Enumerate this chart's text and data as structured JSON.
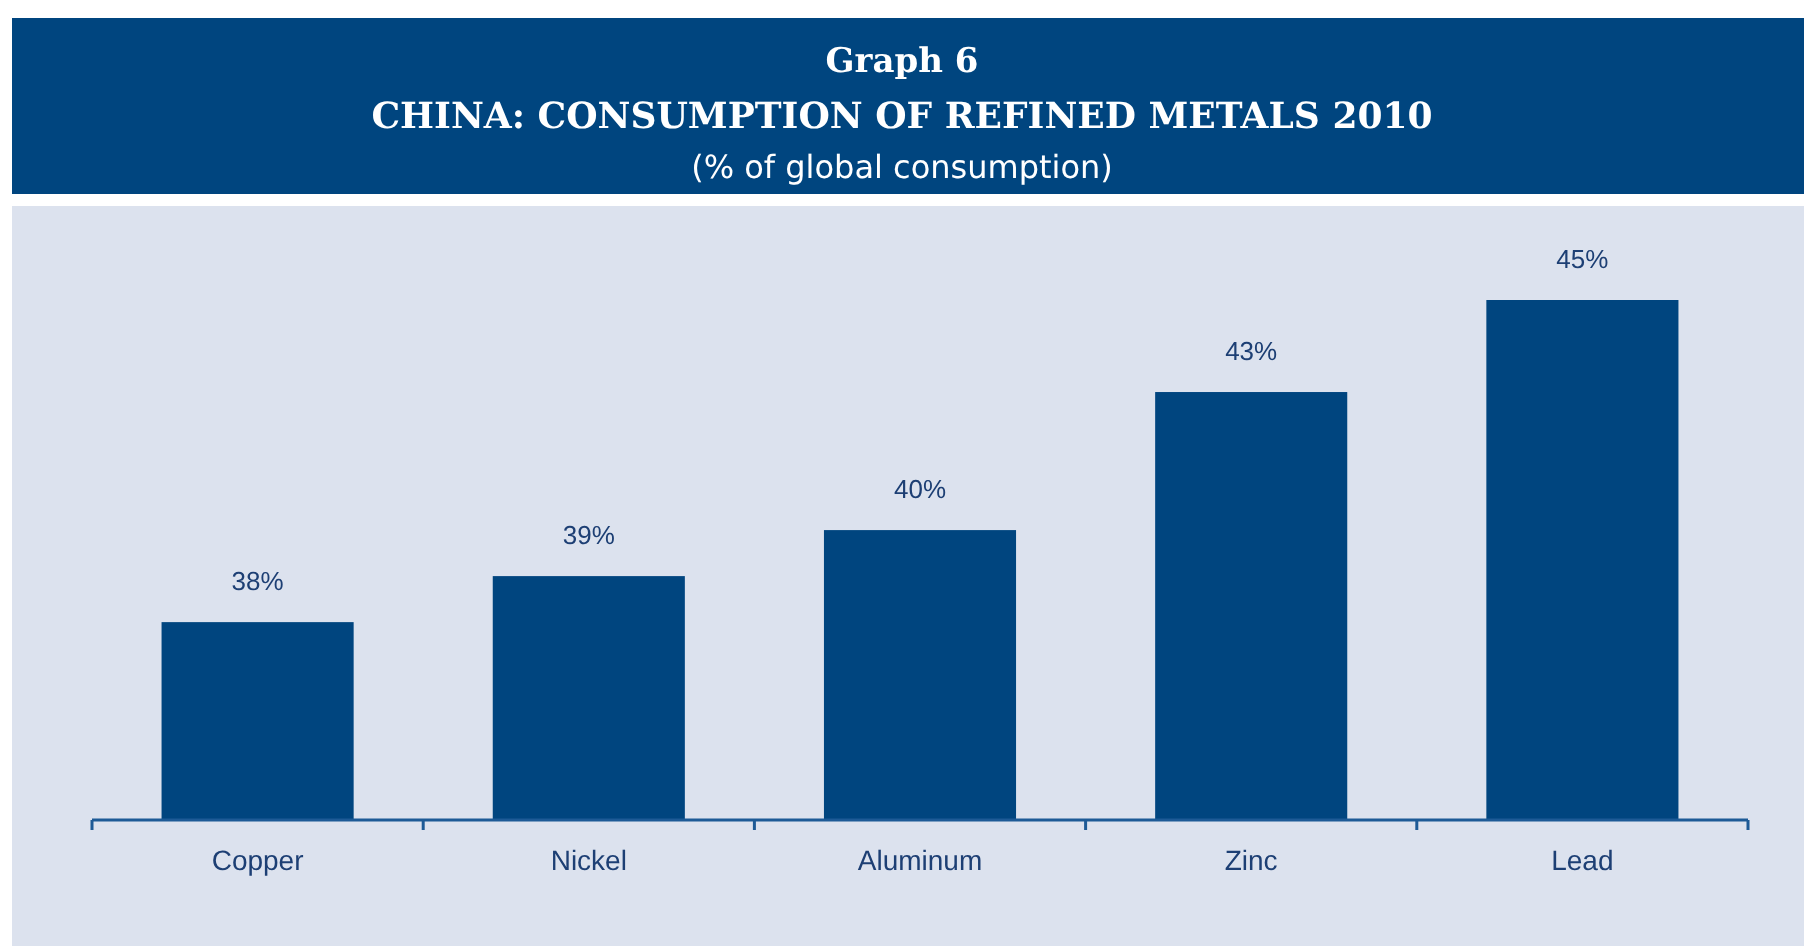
{
  "chart_data": {
    "type": "bar",
    "title": "Graph 6",
    "subtitle": "CHINA: CONSUMPTION OF REFINED METALS 2010",
    "annotations": [
      "(% of global consumption)"
    ],
    "categories": [
      "Copper",
      "Nickel",
      "Aluminum",
      "Zinc",
      "Lead"
    ],
    "values": [
      38,
      39,
      40,
      43,
      45
    ],
    "value_labels": [
      "38%",
      "39%",
      "40%",
      "43%",
      "45%"
    ],
    "color": "#00457f",
    "ylim": [
      33.7,
      45
    ]
  }
}
